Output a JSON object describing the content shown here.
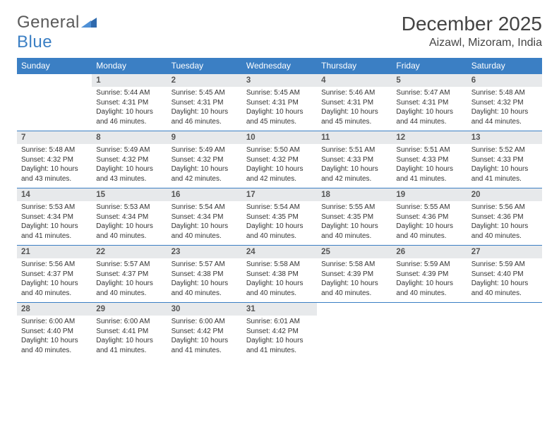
{
  "logo": {
    "general": "General",
    "blue": "Blue"
  },
  "title": {
    "month": "December 2025",
    "location": "Aizawl, Mizoram, India"
  },
  "colors": {
    "header_bg": "#3b7fc4",
    "header_fg": "#ffffff",
    "daynum_bg": "#e7e9eb",
    "rule": "#3b7fc4",
    "text": "#333333"
  },
  "weekdays": [
    "Sunday",
    "Monday",
    "Tuesday",
    "Wednesday",
    "Thursday",
    "Friday",
    "Saturday"
  ],
  "weeks": [
    {
      "nums": [
        "",
        "1",
        "2",
        "3",
        "4",
        "5",
        "6"
      ],
      "cells": [
        null,
        {
          "sr": "Sunrise: 5:44 AM",
          "ss": "Sunset: 4:31 PM",
          "d1": "Daylight: 10 hours",
          "d2": "and 46 minutes."
        },
        {
          "sr": "Sunrise: 5:45 AM",
          "ss": "Sunset: 4:31 PM",
          "d1": "Daylight: 10 hours",
          "d2": "and 46 minutes."
        },
        {
          "sr": "Sunrise: 5:45 AM",
          "ss": "Sunset: 4:31 PM",
          "d1": "Daylight: 10 hours",
          "d2": "and 45 minutes."
        },
        {
          "sr": "Sunrise: 5:46 AM",
          "ss": "Sunset: 4:31 PM",
          "d1": "Daylight: 10 hours",
          "d2": "and 45 minutes."
        },
        {
          "sr": "Sunrise: 5:47 AM",
          "ss": "Sunset: 4:31 PM",
          "d1": "Daylight: 10 hours",
          "d2": "and 44 minutes."
        },
        {
          "sr": "Sunrise: 5:48 AM",
          "ss": "Sunset: 4:32 PM",
          "d1": "Daylight: 10 hours",
          "d2": "and 44 minutes."
        }
      ]
    },
    {
      "nums": [
        "7",
        "8",
        "9",
        "10",
        "11",
        "12",
        "13"
      ],
      "cells": [
        {
          "sr": "Sunrise: 5:48 AM",
          "ss": "Sunset: 4:32 PM",
          "d1": "Daylight: 10 hours",
          "d2": "and 43 minutes."
        },
        {
          "sr": "Sunrise: 5:49 AM",
          "ss": "Sunset: 4:32 PM",
          "d1": "Daylight: 10 hours",
          "d2": "and 43 minutes."
        },
        {
          "sr": "Sunrise: 5:49 AM",
          "ss": "Sunset: 4:32 PM",
          "d1": "Daylight: 10 hours",
          "d2": "and 42 minutes."
        },
        {
          "sr": "Sunrise: 5:50 AM",
          "ss": "Sunset: 4:32 PM",
          "d1": "Daylight: 10 hours",
          "d2": "and 42 minutes."
        },
        {
          "sr": "Sunrise: 5:51 AM",
          "ss": "Sunset: 4:33 PM",
          "d1": "Daylight: 10 hours",
          "d2": "and 42 minutes."
        },
        {
          "sr": "Sunrise: 5:51 AM",
          "ss": "Sunset: 4:33 PM",
          "d1": "Daylight: 10 hours",
          "d2": "and 41 minutes."
        },
        {
          "sr": "Sunrise: 5:52 AM",
          "ss": "Sunset: 4:33 PM",
          "d1": "Daylight: 10 hours",
          "d2": "and 41 minutes."
        }
      ]
    },
    {
      "nums": [
        "14",
        "15",
        "16",
        "17",
        "18",
        "19",
        "20"
      ],
      "cells": [
        {
          "sr": "Sunrise: 5:53 AM",
          "ss": "Sunset: 4:34 PM",
          "d1": "Daylight: 10 hours",
          "d2": "and 41 minutes."
        },
        {
          "sr": "Sunrise: 5:53 AM",
          "ss": "Sunset: 4:34 PM",
          "d1": "Daylight: 10 hours",
          "d2": "and 40 minutes."
        },
        {
          "sr": "Sunrise: 5:54 AM",
          "ss": "Sunset: 4:34 PM",
          "d1": "Daylight: 10 hours",
          "d2": "and 40 minutes."
        },
        {
          "sr": "Sunrise: 5:54 AM",
          "ss": "Sunset: 4:35 PM",
          "d1": "Daylight: 10 hours",
          "d2": "and 40 minutes."
        },
        {
          "sr": "Sunrise: 5:55 AM",
          "ss": "Sunset: 4:35 PM",
          "d1": "Daylight: 10 hours",
          "d2": "and 40 minutes."
        },
        {
          "sr": "Sunrise: 5:55 AM",
          "ss": "Sunset: 4:36 PM",
          "d1": "Daylight: 10 hours",
          "d2": "and 40 minutes."
        },
        {
          "sr": "Sunrise: 5:56 AM",
          "ss": "Sunset: 4:36 PM",
          "d1": "Daylight: 10 hours",
          "d2": "and 40 minutes."
        }
      ]
    },
    {
      "nums": [
        "21",
        "22",
        "23",
        "24",
        "25",
        "26",
        "27"
      ],
      "cells": [
        {
          "sr": "Sunrise: 5:56 AM",
          "ss": "Sunset: 4:37 PM",
          "d1": "Daylight: 10 hours",
          "d2": "and 40 minutes."
        },
        {
          "sr": "Sunrise: 5:57 AM",
          "ss": "Sunset: 4:37 PM",
          "d1": "Daylight: 10 hours",
          "d2": "and 40 minutes."
        },
        {
          "sr": "Sunrise: 5:57 AM",
          "ss": "Sunset: 4:38 PM",
          "d1": "Daylight: 10 hours",
          "d2": "and 40 minutes."
        },
        {
          "sr": "Sunrise: 5:58 AM",
          "ss": "Sunset: 4:38 PM",
          "d1": "Daylight: 10 hours",
          "d2": "and 40 minutes."
        },
        {
          "sr": "Sunrise: 5:58 AM",
          "ss": "Sunset: 4:39 PM",
          "d1": "Daylight: 10 hours",
          "d2": "and 40 minutes."
        },
        {
          "sr": "Sunrise: 5:59 AM",
          "ss": "Sunset: 4:39 PM",
          "d1": "Daylight: 10 hours",
          "d2": "and 40 minutes."
        },
        {
          "sr": "Sunrise: 5:59 AM",
          "ss": "Sunset: 4:40 PM",
          "d1": "Daylight: 10 hours",
          "d2": "and 40 minutes."
        }
      ]
    },
    {
      "nums": [
        "28",
        "29",
        "30",
        "31",
        "",
        "",
        ""
      ],
      "cells": [
        {
          "sr": "Sunrise: 6:00 AM",
          "ss": "Sunset: 4:40 PM",
          "d1": "Daylight: 10 hours",
          "d2": "and 40 minutes."
        },
        {
          "sr": "Sunrise: 6:00 AM",
          "ss": "Sunset: 4:41 PM",
          "d1": "Daylight: 10 hours",
          "d2": "and 41 minutes."
        },
        {
          "sr": "Sunrise: 6:00 AM",
          "ss": "Sunset: 4:42 PM",
          "d1": "Daylight: 10 hours",
          "d2": "and 41 minutes."
        },
        {
          "sr": "Sunrise: 6:01 AM",
          "ss": "Sunset: 4:42 PM",
          "d1": "Daylight: 10 hours",
          "d2": "and 41 minutes."
        },
        null,
        null,
        null
      ]
    }
  ]
}
